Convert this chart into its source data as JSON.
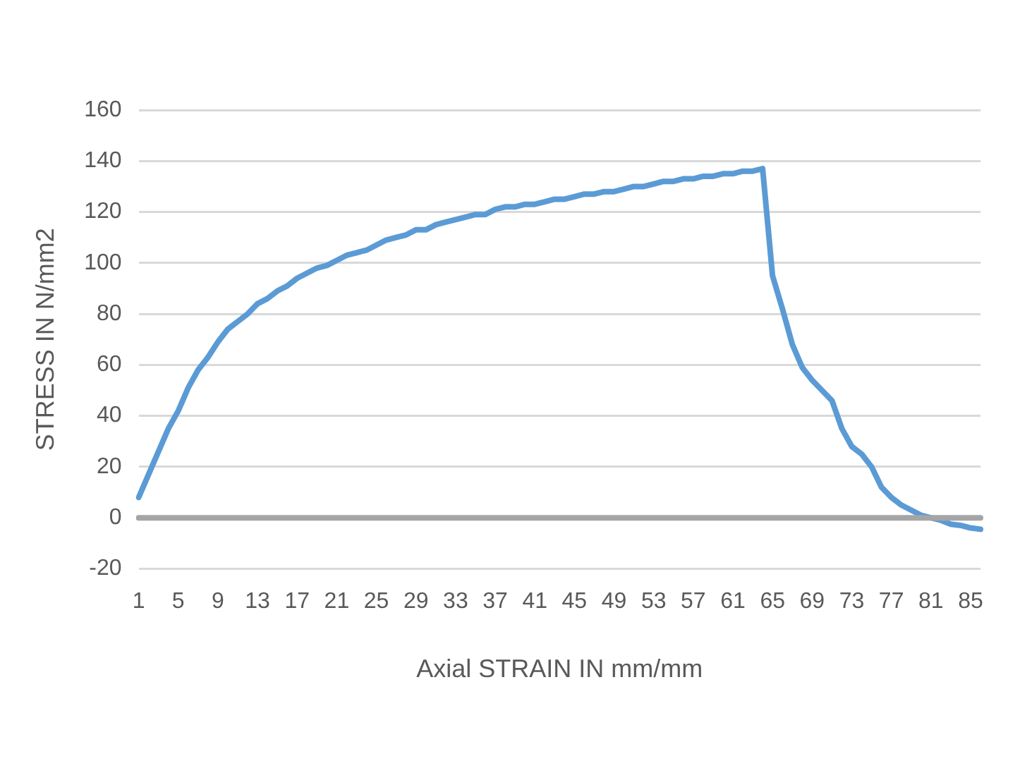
{
  "chart_data": {
    "type": "line",
    "xlabel": "Axial STRAIN IN mm/mm",
    "ylabel": "STRESS IN N/mm2",
    "categories": [
      "1",
      null,
      null,
      null,
      "5",
      null,
      null,
      null,
      "9",
      null,
      null,
      null,
      "13",
      null,
      null,
      null,
      "17",
      null,
      null,
      null,
      "21",
      null,
      null,
      null,
      "25",
      null,
      null,
      null,
      "29",
      null,
      null,
      null,
      "33",
      null,
      null,
      null,
      "37",
      null,
      null,
      null,
      "41",
      null,
      null,
      null,
      "45",
      null,
      null,
      null,
      "49",
      null,
      null,
      null,
      "53",
      null,
      null,
      null,
      "57",
      null,
      null,
      null,
      "61",
      null,
      null,
      null,
      "65",
      null,
      null,
      null,
      "69",
      null,
      null,
      null,
      "73",
      null,
      null,
      null,
      "77",
      null,
      null,
      null,
      "81",
      null,
      null,
      null,
      "85",
      null
    ],
    "series": [
      {
        "color": "#5b9bd5",
        "values": [
          8,
          17,
          26,
          35,
          42,
          51,
          58,
          63,
          69,
          74,
          77,
          80,
          84,
          86,
          89,
          91,
          94,
          96,
          98,
          99,
          101,
          103,
          104,
          105,
          107,
          109,
          110,
          111,
          113,
          113,
          115,
          116,
          117,
          118,
          119,
          119,
          121,
          122,
          122,
          123,
          123,
          124,
          125,
          125,
          126,
          127,
          127,
          128,
          128,
          129,
          130,
          130,
          131,
          132,
          132,
          133,
          133,
          134,
          134,
          135,
          135,
          136,
          136,
          137,
          95,
          82,
          68,
          59,
          54,
          50,
          46,
          35,
          28,
          25,
          20,
          12,
          8,
          5,
          3,
          1,
          0,
          -1,
          -2.5,
          -3,
          -4,
          -4.5
        ]
      },
      {
        "color": "#a5a5a5",
        "values": [
          0,
          0,
          0,
          0,
          0,
          0,
          0,
          0,
          0,
          0,
          0,
          0,
          0,
          0,
          0,
          0,
          0,
          0,
          0,
          0,
          0,
          0,
          0,
          0,
          0,
          0,
          0,
          0,
          0,
          0,
          0,
          0,
          0,
          0,
          0,
          0,
          0,
          0,
          0,
          0,
          0,
          0,
          0,
          0,
          0,
          0,
          0,
          0,
          0,
          0,
          0,
          0,
          0,
          0,
          0,
          0,
          0,
          0,
          0,
          0,
          0,
          0,
          0,
          0,
          0,
          0,
          0,
          0,
          0,
          0,
          0,
          0,
          0,
          0,
          0,
          0,
          0,
          0,
          0,
          0,
          0,
          0,
          0,
          0,
          0,
          0
        ]
      }
    ],
    "ylim": [
      -20,
      160
    ],
    "yticks": [
      -20,
      0,
      20,
      40,
      60,
      80,
      100,
      120,
      140,
      160
    ],
    "grid": "y",
    "legend": false,
    "marker": "none",
    "line_style": "solid"
  }
}
